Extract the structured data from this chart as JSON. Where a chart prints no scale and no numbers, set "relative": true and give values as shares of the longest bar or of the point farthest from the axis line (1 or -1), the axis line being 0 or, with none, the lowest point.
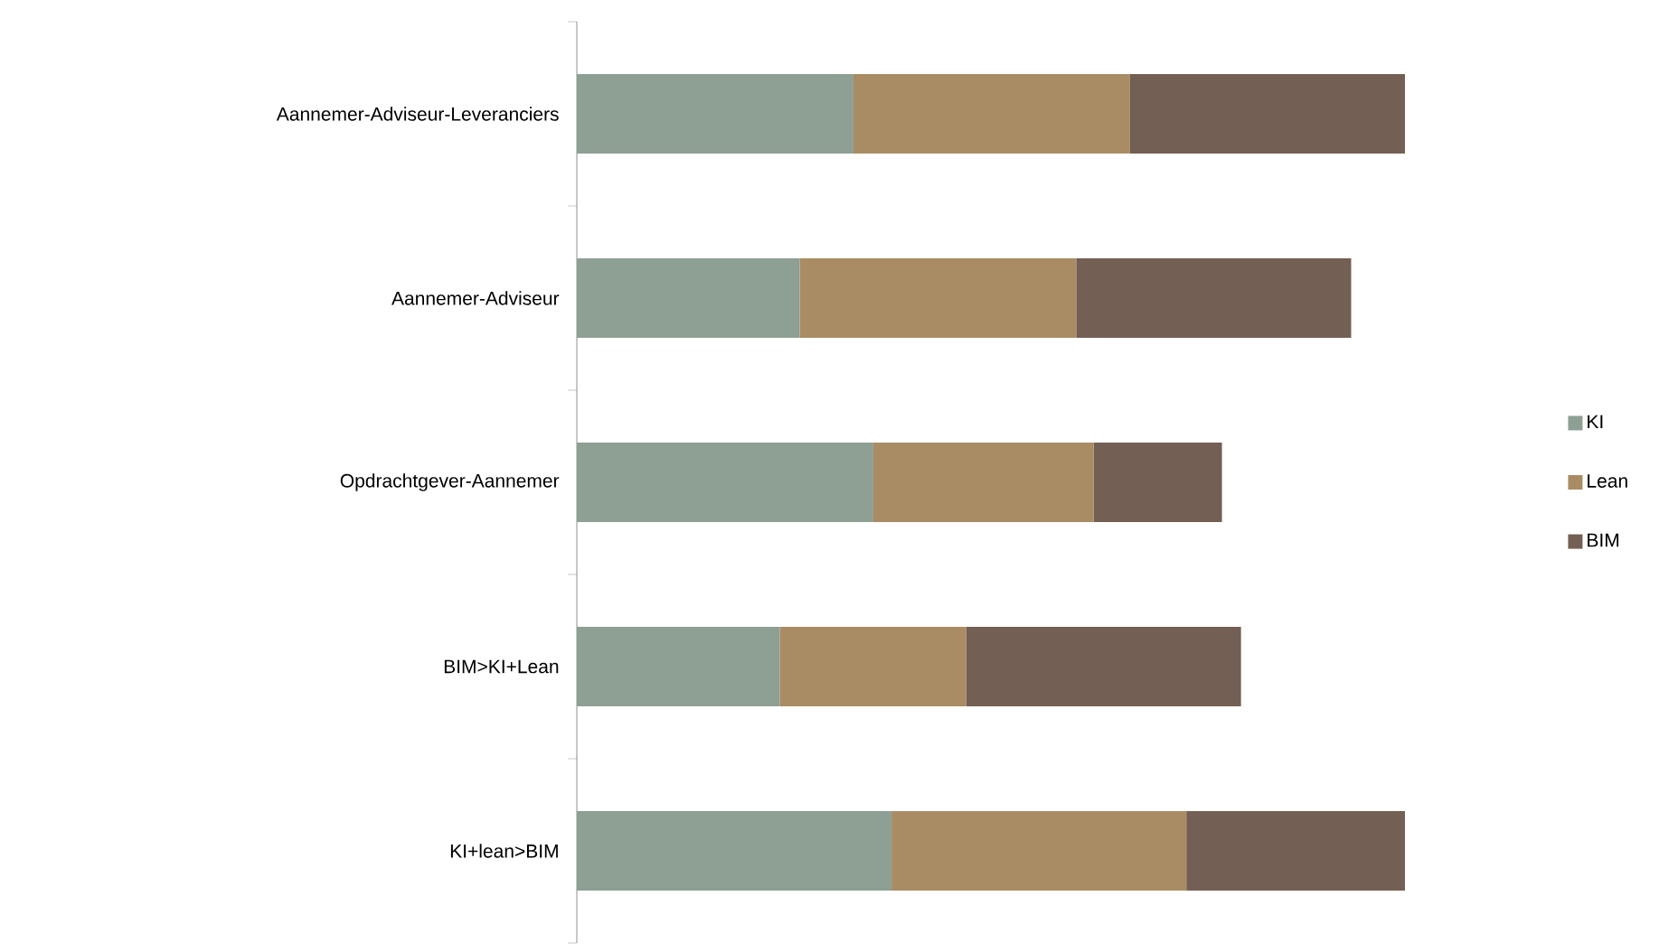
{
  "chart_data": {
    "type": "bar",
    "orientation": "horizontal",
    "stacked": true,
    "relative": true,
    "legend": "right",
    "categories": [
      "Aannemer-Adviseur-Leveranciers",
      "Aannemer-Adviseur",
      "Opdrachtgever-Aannemer",
      "BIM>KI+Lean",
      "KI+lean>BIM"
    ],
    "series": [
      {
        "name": "KI",
        "color": "#8e9f94",
        "values": [
          0.334,
          0.269,
          0.358,
          0.245,
          0.38
        ]
      },
      {
        "name": "Lean",
        "color": "#a98c64",
        "values": [
          0.334,
          0.334,
          0.266,
          0.225,
          0.356
        ]
      },
      {
        "name": "BIM",
        "color": "#735f53",
        "values": [
          0.332,
          0.332,
          0.155,
          0.332,
          0.264
        ]
      }
    ]
  }
}
